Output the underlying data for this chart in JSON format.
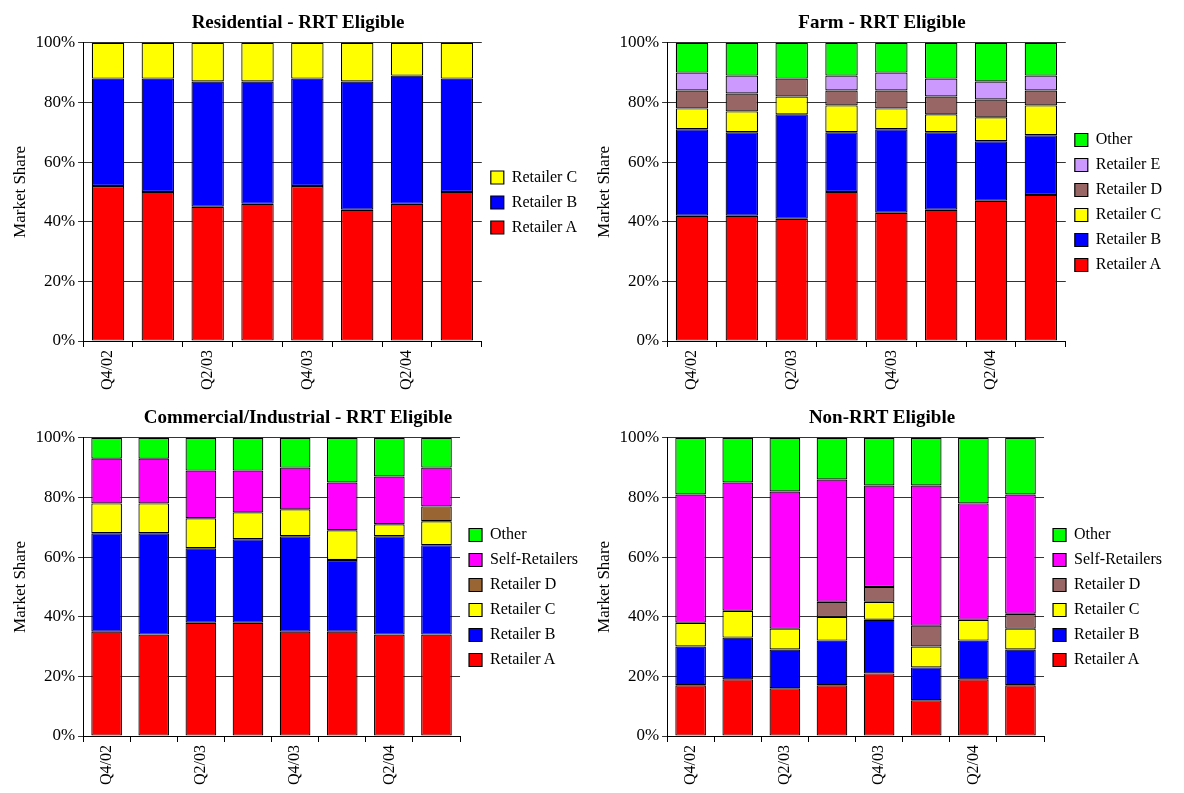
{
  "chart_data": [
    {
      "type": "bar",
      "title": "Residential - RRT Eligible",
      "ylabel": "Market Share",
      "categories": [
        "Q4/02",
        null,
        "Q2/03",
        null,
        "Q4/03",
        null,
        "Q2/04",
        null
      ],
      "stacked": true,
      "ylim": [
        0,
        100
      ],
      "yticks": [
        {
          "value": 0,
          "label": "0%"
        },
        {
          "value": 20,
          "label": "20%"
        },
        {
          "value": 40,
          "label": "40%"
        },
        {
          "value": 60,
          "label": "60%"
        },
        {
          "value": 80,
          "label": "80%"
        },
        {
          "value": 100,
          "label": "100%"
        }
      ],
      "grid": "y",
      "legend": "right",
      "series": [
        {
          "name": "Retailer A",
          "color": "#ff0000",
          "values": [
            52,
            50,
            45,
            46,
            52,
            44,
            46,
            50
          ]
        },
        {
          "name": "Retailer B",
          "color": "#0000ff",
          "values": [
            36,
            38,
            42,
            41,
            36,
            43,
            43,
            38
          ]
        },
        {
          "name": "Retailer C",
          "color": "#ffff00",
          "values": [
            12,
            12,
            13,
            13,
            12,
            13,
            11,
            12
          ]
        }
      ]
    },
    {
      "type": "bar",
      "title": "Farm - RRT Eligible",
      "ylabel": "Market Share",
      "categories": [
        "Q4/02",
        null,
        "Q2/03",
        null,
        "Q4/03",
        null,
        "Q2/04",
        null
      ],
      "stacked": true,
      "ylim": [
        0,
        100
      ],
      "yticks": [
        {
          "value": 0,
          "label": "0%"
        },
        {
          "value": 20,
          "label": "20%"
        },
        {
          "value": 40,
          "label": "40%"
        },
        {
          "value": 60,
          "label": "60%"
        },
        {
          "value": 80,
          "label": "80%"
        },
        {
          "value": 100,
          "label": "100%"
        }
      ],
      "grid": "y",
      "legend": "right",
      "series": [
        {
          "name": "Retailer A",
          "color": "#ff0000",
          "values": [
            42,
            42,
            41,
            50,
            43,
            44,
            47,
            49
          ]
        },
        {
          "name": "Retailer B",
          "color": "#0000ff",
          "values": [
            29,
            28,
            35,
            20,
            28,
            26,
            20,
            20
          ]
        },
        {
          "name": "Retailer C",
          "color": "#ffff00",
          "values": [
            7,
            7,
            6,
            9,
            7,
            6,
            8,
            10
          ]
        },
        {
          "name": "Retailer D",
          "color": "#996666",
          "values": [
            6,
            6,
            6,
            5,
            6,
            6,
            6,
            5
          ]
        },
        {
          "name": "Retailer E",
          "color": "#cc99ff",
          "values": [
            6,
            6,
            null,
            5,
            6,
            6,
            6,
            5
          ]
        },
        {
          "name": "Other",
          "color": "#00ff00",
          "values": [
            10,
            11,
            12,
            11,
            10,
            12,
            13,
            11
          ]
        }
      ]
    },
    {
      "type": "bar",
      "title": "Commercial/Industrial - RRT Eligible",
      "ylabel": "Market Share",
      "categories": [
        "Q4/02",
        null,
        "Q2/03",
        null,
        "Q4/03",
        null,
        "Q2/04",
        null
      ],
      "stacked": true,
      "ylim": [
        0,
        100
      ],
      "yticks": [
        {
          "value": 0,
          "label": "0%"
        },
        {
          "value": 20,
          "label": "20%"
        },
        {
          "value": 40,
          "label": "40%"
        },
        {
          "value": 60,
          "label": "60%"
        },
        {
          "value": 80,
          "label": "80%"
        },
        {
          "value": 100,
          "label": "100%"
        }
      ],
      "grid": "y",
      "legend": "right",
      "series": [
        {
          "name": "Retailer A",
          "color": "#ff0000",
          "values": [
            35,
            34,
            38,
            38,
            35,
            35,
            34,
            34
          ]
        },
        {
          "name": "Retailer B",
          "color": "#0000ff",
          "values": [
            33,
            34,
            25,
            28,
            32,
            24,
            33,
            30
          ]
        },
        {
          "name": "Retailer C",
          "color": "#ffff00",
          "values": [
            10,
            10,
            10,
            9,
            9,
            10,
            4,
            8
          ]
        },
        {
          "name": "Retailer D",
          "color": "#996633",
          "values": [
            null,
            null,
            null,
            null,
            null,
            null,
            null,
            5
          ]
        },
        {
          "name": "Self-Retailers",
          "color": "#ff00ff",
          "values": [
            15,
            15,
            16,
            14,
            14,
            16,
            16,
            13
          ]
        },
        {
          "name": "Other",
          "color": "#00ff00",
          "values": [
            7,
            7,
            11,
            11,
            10,
            15,
            13,
            10
          ]
        }
      ]
    },
    {
      "type": "bar",
      "title": "Non-RRT Eligible",
      "ylabel": "Market Share",
      "categories": [
        "Q4/02",
        null,
        "Q2/03",
        null,
        "Q4/03",
        null,
        "Q2/04",
        null
      ],
      "stacked": true,
      "ylim": [
        0,
        100
      ],
      "yticks": [
        {
          "value": 0,
          "label": "0%"
        },
        {
          "value": 20,
          "label": "20%"
        },
        {
          "value": 40,
          "label": "40%"
        },
        {
          "value": 60,
          "label": "60%"
        },
        {
          "value": 80,
          "label": "80%"
        },
        {
          "value": 100,
          "label": "100%"
        }
      ],
      "grid": "y",
      "legend": "right",
      "series": [
        {
          "name": "Retailer A",
          "color": "#ff0000",
          "values": [
            17,
            19,
            16,
            17,
            21,
            12,
            19,
            17
          ]
        },
        {
          "name": "Retailer B",
          "color": "#0000ff",
          "values": [
            13,
            14,
            13,
            15,
            18,
            11,
            13,
            12
          ]
        },
        {
          "name": "Retailer C",
          "color": "#ffff00",
          "values": [
            8,
            9,
            7,
            8,
            6,
            7,
            7,
            7
          ]
        },
        {
          "name": "Retailer D",
          "color": "#996666",
          "values": [
            null,
            null,
            null,
            5,
            5,
            7,
            null,
            5
          ]
        },
        {
          "name": "Self-Retailers",
          "color": "#ff00ff",
          "values": [
            43,
            43,
            46,
            41,
            34,
            47,
            39,
            40
          ]
        },
        {
          "name": "Other",
          "color": "#00ff00",
          "values": [
            19,
            15,
            18,
            14,
            16,
            16,
            22,
            19
          ]
        }
      ]
    }
  ]
}
